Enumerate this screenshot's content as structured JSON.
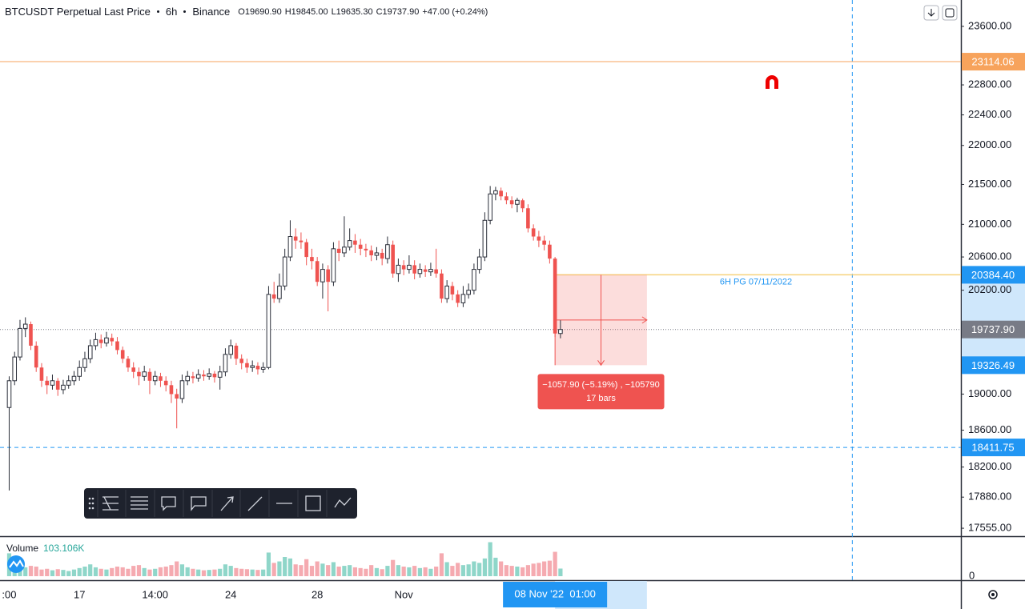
{
  "header": {
    "symbol": "BTCUSDT Perpetual Last Price",
    "interval": "6h",
    "exchange": "Binance",
    "open": "O19690.90",
    "high": "H19845.00",
    "low": "L19635.30",
    "close": "C19737.90",
    "change": "+47.00 (+0.24%)"
  },
  "chart_data": {
    "type": "candlestick",
    "log_scale": true,
    "xlim": [
      -1.7,
      176.1
    ],
    "ylim": [
      17473,
      23970
    ],
    "yticks": [
      {
        "value": 23600,
        "label": "23600.00"
      },
      {
        "value": 22800,
        "label": "22800.00"
      },
      {
        "value": 22400,
        "label": "22400.00"
      },
      {
        "value": 22000,
        "label": "22000.00"
      },
      {
        "value": 21500,
        "label": "21500.00"
      },
      {
        "value": 21000,
        "label": "21000.00"
      },
      {
        "value": 20600,
        "label": "20600.00"
      },
      {
        "value": 20200,
        "label": "20200.00"
      },
      {
        "value": 19000,
        "label": "19000.00"
      },
      {
        "value": 18600,
        "label": "18600.00"
      },
      {
        "value": 18200,
        "label": "18200.00"
      },
      {
        "value": 17880,
        "label": "17880.00"
      },
      {
        "value": 17555,
        "label": "17555.00"
      }
    ],
    "xticks": [
      {
        "value": 0,
        "label": ":00"
      },
      {
        "value": 13,
        "label": "17"
      },
      {
        "value": 27,
        "label": "14:00"
      },
      {
        "value": 41,
        "label": "24"
      },
      {
        "value": 57,
        "label": "28"
      },
      {
        "value": 73,
        "label": "Nov"
      }
    ],
    "up_color": "#2a2e39",
    "down_color": "#ef5350",
    "open": [
      18850,
      19150,
      19420,
      19750,
      19800,
      19550,
      19300,
      19150,
      19100,
      19150,
      19050,
      19100,
      19150,
      19200,
      19300,
      19400,
      19550,
      19620,
      19580,
      19640,
      19600,
      19500,
      19400,
      19300,
      19250,
      19200,
      19250,
      19150,
      19200,
      19150,
      19100,
      19000,
      18950,
      19150,
      19200,
      19180,
      19220,
      19200,
      19230,
      19190,
      19250,
      19450,
      19550,
      19400,
      19350,
      19300,
      19320,
      19280,
      19300,
      20150,
      20100,
      20250,
      20600,
      20850,
      20800,
      20780,
      20600,
      20550,
      20300,
      20450,
      20300,
      20700,
      20650,
      20720,
      20800,
      20750,
      20700,
      20680,
      20620,
      20650,
      20580,
      20750,
      20400,
      20500,
      20450,
      20500,
      20400,
      20450,
      20420,
      20450,
      20400,
      20100,
      20250,
      20150,
      20050,
      20150,
      20200,
      20450,
      20600,
      21050,
      21380,
      21420,
      21350,
      21300,
      21250,
      21300,
      21200,
      20950,
      20850,
      20800,
      20750,
      20580,
      19690.9
    ],
    "high": [
      19200,
      19480,
      19850,
      19880,
      19830,
      19600,
      19350,
      19200,
      19220,
      19180,
      19160,
      19210,
      19260,
      19380,
      19480,
      19620,
      19700,
      19680,
      19710,
      19690,
      19650,
      19540,
      19430,
      19360,
      19300,
      19320,
      19290,
      19260,
      19240,
      19200,
      19150,
      19060,
      19220,
      19260,
      19250,
      19280,
      19270,
      19290,
      19260,
      19320,
      19520,
      19620,
      19580,
      19450,
      19400,
      19380,
      19360,
      19360,
      20250,
      20300,
      20400,
      20700,
      21050,
      20950,
      20900,
      20820,
      20700,
      20600,
      20520,
      20500,
      20780,
      20800,
      21100,
      20950,
      20880,
      20820,
      20760,
      20740,
      20720,
      20700,
      20850,
      20800,
      20580,
      20560,
      20620,
      20560,
      20520,
      20500,
      20530,
      20700,
      20450,
      20320,
      20300,
      20200,
      20250,
      20280,
      20520,
      20700,
      21150,
      21480,
      21470,
      21460,
      21400,
      21350,
      21330,
      21320,
      21250,
      21000,
      20920,
      20860,
      20800,
      20600,
      19845
    ],
    "low": [
      17950,
      19100,
      19380,
      19650,
      19500,
      19250,
      19080,
      19000,
      19050,
      18980,
      19000,
      19060,
      19100,
      19150,
      19250,
      19350,
      19500,
      19520,
      19540,
      19550,
      19450,
      19350,
      19250,
      19180,
      19100,
      19150,
      19000,
      19100,
      19080,
      19030,
      18900,
      18620,
      18900,
      19100,
      19120,
      19140,
      19150,
      19160,
      19130,
      19050,
      19200,
      19400,
      19330,
      19280,
      19240,
      19250,
      19220,
      19240,
      19280,
      20050,
      20050,
      20200,
      20550,
      20700,
      20700,
      20500,
      20450,
      20250,
      20100,
      19950,
      20250,
      20550,
      20600,
      20680,
      20650,
      20620,
      20600,
      20550,
      20560,
      20500,
      20520,
      20350,
      20300,
      20380,
      20400,
      20330,
      20350,
      20360,
      20370,
      20350,
      20050,
      20050,
      20080,
      20000,
      20000,
      20100,
      20150,
      20400,
      20550,
      21000,
      21300,
      21300,
      21250,
      21200,
      21150,
      21150,
      20900,
      20800,
      20720,
      20680,
      20520,
      19650,
      19635.3
    ],
    "close": [
      19150,
      19420,
      19750,
      19800,
      19550,
      19300,
      19150,
      19100,
      19150,
      19050,
      19100,
      19150,
      19200,
      19300,
      19400,
      19550,
      19620,
      19580,
      19640,
      19600,
      19500,
      19400,
      19300,
      19250,
      19200,
      19250,
      19150,
      19200,
      19150,
      19100,
      19000,
      18950,
      19150,
      19200,
      19180,
      19220,
      19200,
      19230,
      19190,
      19250,
      19450,
      19550,
      19400,
      19350,
      19300,
      19320,
      19280,
      19300,
      20150,
      20100,
      20250,
      20600,
      20850,
      20800,
      20780,
      20600,
      20550,
      20300,
      20450,
      20300,
      20700,
      20650,
      20720,
      20800,
      20750,
      20700,
      20680,
      20620,
      20650,
      20580,
      20750,
      20400,
      20500,
      20450,
      20500,
      20400,
      20450,
      20420,
      20450,
      20400,
      20100,
      20250,
      20150,
      20050,
      20150,
      20200,
      20450,
      20600,
      21050,
      21380,
      21420,
      21350,
      21300,
      21250,
      21300,
      21200,
      20950,
      20850,
      20800,
      20750,
      20580,
      19690.9,
      19737.9
    ],
    "volume": {
      "name": "Volume",
      "value_label": "103.106K",
      "ylim": [
        0,
        520000
      ],
      "yticks": [
        0
      ],
      "up_color": "#8fd6c9",
      "down_color": "#f5aab0",
      "values": [
        310000,
        150000,
        180000,
        120000,
        140000,
        130000,
        90000,
        100000,
        80000,
        95000,
        85000,
        70000,
        90000,
        110000,
        130000,
        160000,
        120000,
        100000,
        90000,
        110000,
        130000,
        120000,
        100000,
        140000,
        150000,
        110000,
        90000,
        100000,
        120000,
        130000,
        150000,
        200000,
        160000,
        120000,
        100000,
        90000,
        80000,
        85000,
        90000,
        100000,
        160000,
        140000,
        110000,
        100000,
        95000,
        90000,
        85000,
        90000,
        320000,
        180000,
        200000,
        260000,
        240000,
        160000,
        150000,
        230000,
        140000,
        200000,
        170000,
        150000,
        190000,
        130000,
        140000,
        150000,
        120000,
        110000,
        100000,
        150000,
        110000,
        95000,
        140000,
        220000,
        150000,
        130000,
        120000,
        140000,
        110000,
        120000,
        100000,
        130000,
        310000,
        190000,
        140000,
        180000,
        150000,
        160000,
        200000,
        180000,
        240000,
        460000,
        250000,
        200000,
        150000,
        140000,
        130000,
        120000,
        150000,
        170000,
        180000,
        200000,
        210000,
        330000,
        103106
      ]
    },
    "price_lines": [
      {
        "value": 23114.06,
        "label": "23114.06",
        "color": "#f7a35c",
        "style": "solid"
      },
      {
        "value": 19737.9,
        "label": "19737.90",
        "color": "#787b86",
        "style": "dotted"
      },
      {
        "value": 18411.75,
        "label": "18411.75",
        "color": "#2196f3",
        "style": "dashed"
      }
    ],
    "pg_line": {
      "value": 20384.4,
      "text": "6H PG 07/11/2022",
      "color": "#f7d27c",
      "text_color": "#2196f3"
    },
    "crosshair_index": 156,
    "measure": {
      "from_index": 101,
      "to_index": 118,
      "from": {
        "value": 20384.4,
        "label": "20384.40"
      },
      "to": {
        "value": 19326.49,
        "label": "19326.49"
      },
      "text": "−1057.90 (−5.19%) , −105790",
      "bars": "17 bars",
      "time_label": "08 Nov '22  01:00"
    }
  }
}
